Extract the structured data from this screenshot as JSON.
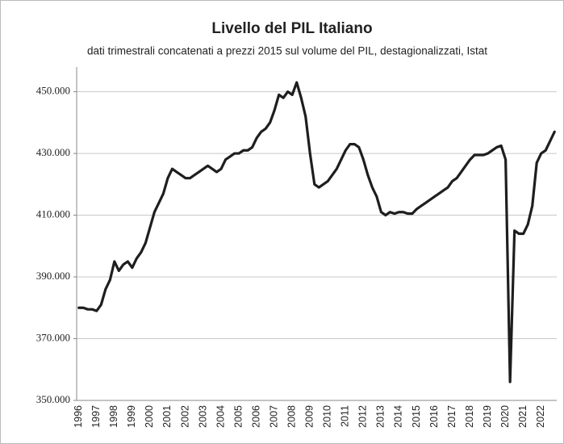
{
  "chart_data": {
    "type": "line",
    "title": "Livello del PIL Italiano",
    "subtitle": "dati trimestrali concatenati a prezzi 2015 sul volume del PIL, destagionalizzati, Istat",
    "categories": [
      "1996",
      null,
      null,
      null,
      "1997",
      null,
      null,
      null,
      "1998",
      null,
      null,
      null,
      "1999",
      null,
      null,
      null,
      "2000",
      null,
      null,
      null,
      "2001",
      null,
      null,
      null,
      "2002",
      null,
      null,
      null,
      "2003",
      null,
      null,
      null,
      "2004",
      null,
      null,
      null,
      "2005",
      null,
      null,
      null,
      "2006",
      null,
      null,
      null,
      "2007",
      null,
      null,
      null,
      "2008",
      null,
      null,
      null,
      "2009",
      null,
      null,
      null,
      "2010",
      null,
      null,
      null,
      "2011",
      null,
      null,
      null,
      "2012",
      null,
      null,
      null,
      "2013",
      null,
      null,
      null,
      "2014",
      null,
      null,
      null,
      "2015",
      null,
      null,
      null,
      "2016",
      null,
      null,
      null,
      "2017",
      null,
      null,
      null,
      "2018",
      null,
      null,
      null,
      "2019",
      null,
      null,
      null,
      "2020",
      null,
      null,
      null,
      "2021",
      null,
      null,
      null,
      "2022",
      null,
      null,
      null
    ],
    "series": [
      {
        "color": "#1e1e1e",
        "values": [
          380000,
          380000,
          379500,
          379500,
          379000,
          381000,
          386000,
          389000,
          395000,
          392000,
          394000,
          395000,
          393000,
          396000,
          398000,
          401000,
          406000,
          411000,
          414000,
          417000,
          422000,
          425000,
          424000,
          423000,
          422000,
          422000,
          423000,
          424000,
          425000,
          426000,
          425000,
          424000,
          425000,
          428000,
          429000,
          430000,
          430000,
          431000,
          431000,
          432000,
          435000,
          437000,
          438000,
          440000,
          444000,
          449000,
          448000,
          450000,
          449000,
          453000,
          448000,
          442000,
          430000,
          420000,
          419000,
          420000,
          421000,
          423000,
          425000,
          428000,
          431000,
          433000,
          433000,
          432000,
          428000,
          423000,
          419000,
          416000,
          411000,
          410000,
          411000,
          410500,
          411000,
          411000,
          410500,
          410500,
          412000,
          413000,
          414000,
          415000,
          416000,
          417000,
          418000,
          419000,
          421000,
          422000,
          424000,
          426000,
          428000,
          429500,
          429500,
          429500,
          430000,
          431000,
          432000,
          432500,
          428000,
          356000,
          405000,
          404000,
          404000,
          407000,
          413000,
          427000,
          430000,
          431000,
          434000,
          437000
        ]
      }
    ],
    "ylim": [
      350000,
      458000
    ],
    "yticks": [
      {
        "value": 350000,
        "label": "350.000"
      },
      {
        "value": 370000,
        "label": "370.000"
      },
      {
        "value": 390000,
        "label": "390.000"
      },
      {
        "value": 410000,
        "label": "410.000"
      },
      {
        "value": 430000,
        "label": "430.000"
      },
      {
        "value": 450000,
        "label": "450.000"
      }
    ],
    "grid": true
  }
}
